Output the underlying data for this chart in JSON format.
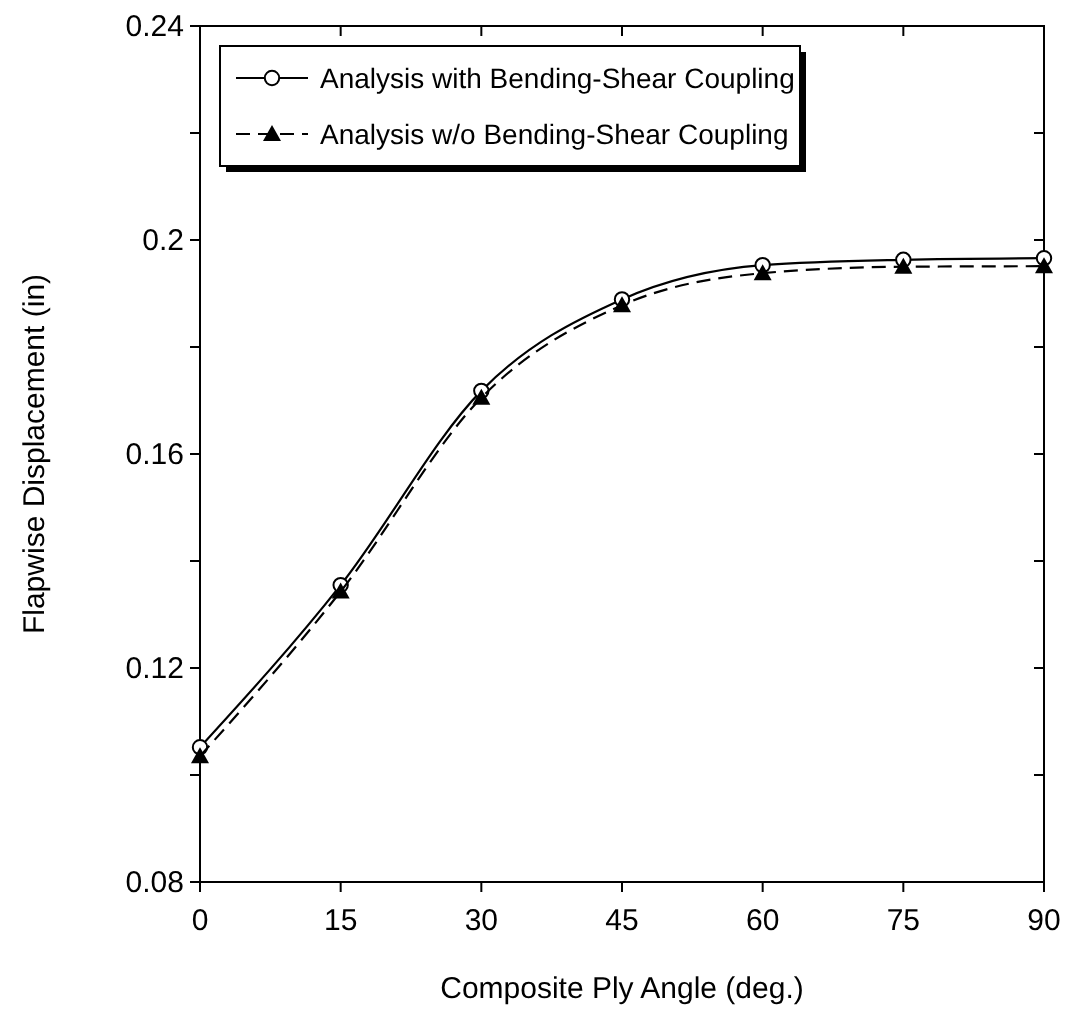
{
  "chart_data": {
    "type": "line",
    "xlabel": "Composite Ply Angle (deg.)",
    "ylabel": "Flapwise Displacement (in)",
    "x": [
      0,
      15,
      30,
      45,
      60,
      75,
      90
    ],
    "series": [
      {
        "name": "Analysis with Bending-Shear Coupling",
        "color": "#000000",
        "values": [
          0.1052,
          0.1355,
          0.1718,
          0.1889,
          0.1953,
          0.1963,
          0.1966
        ],
        "marker": "circle",
        "line_style": "solid"
      },
      {
        "name": "Analysis w/o Bending-Shear Coupling",
        "color": "#000000",
        "values": [
          0.1035,
          0.1343,
          0.1705,
          0.1878,
          0.1938,
          0.195,
          0.1951
        ],
        "marker": "triangle",
        "line_style": "dashed"
      }
    ],
    "xlim": [
      0,
      90
    ],
    "xticks": [
      0,
      15,
      30,
      45,
      60,
      75,
      90
    ],
    "ylim": [
      0.08,
      0.24
    ],
    "yticks": [
      0.08,
      {
        "value": 0.1,
        "label": null
      },
      0.12,
      {
        "value": 0.14,
        "label": null
      },
      0.16,
      {
        "value": 0.18,
        "label": null
      },
      0.2,
      {
        "value": 0.22,
        "label": null
      },
      0.24
    ],
    "grid": false,
    "legend": "top left"
  }
}
